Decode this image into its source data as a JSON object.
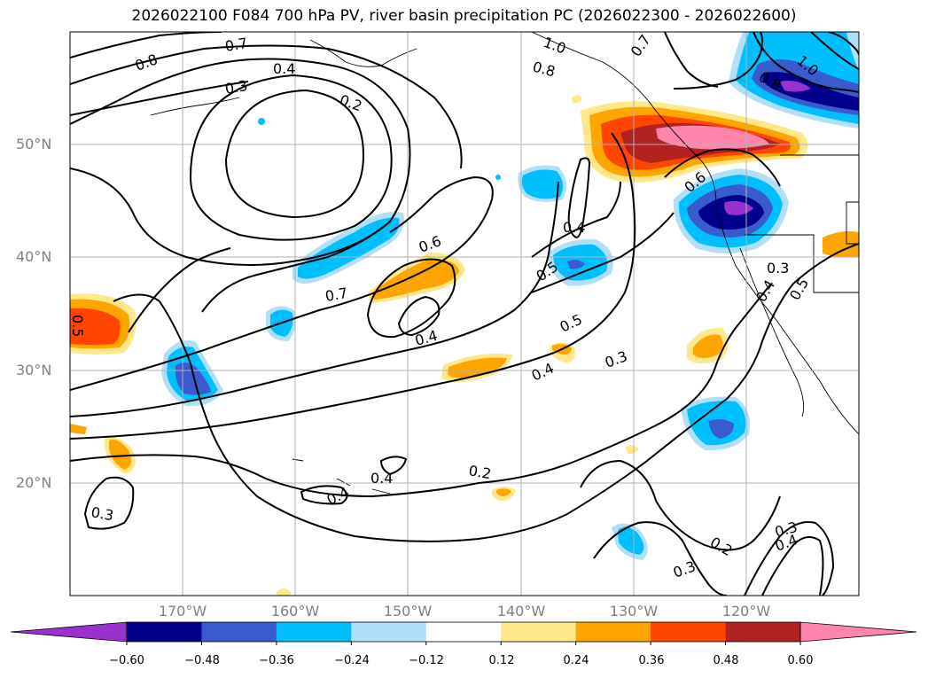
{
  "title": "2026022100 F084 700 hPa PV, river basin precipitation PC (2026022300 - 2026022600)",
  "map": {
    "projection": "equirectangular",
    "lon_range": [
      -180,
      -110
    ],
    "lat_range": [
      10,
      60
    ],
    "lat_ticks": [
      {
        "value": 20,
        "label": "20°N"
      },
      {
        "value": 30,
        "label": "30°N"
      },
      {
        "value": 40,
        "label": "40°N"
      },
      {
        "value": 50,
        "label": "50°N"
      }
    ],
    "lon_ticks": [
      {
        "value": -170,
        "label": "170°W"
      },
      {
        "value": -160,
        "label": "160°W"
      },
      {
        "value": -150,
        "label": "150°W"
      },
      {
        "value": -140,
        "label": "140°W"
      },
      {
        "value": -130,
        "label": "130°W"
      },
      {
        "value": -120,
        "label": "120°W"
      }
    ],
    "contour_variable": "700 hPa PV",
    "shaded_variable": "river basin precipitation PC",
    "contour_labels": [
      "0.8",
      "0.7",
      "0.4",
      "0.3",
      "0.2",
      "1.0",
      "0.8",
      "0.7",
      "1.0",
      "0.8",
      "0.6",
      "0.4",
      "0.6",
      "0.7",
      "0.5",
      "0.5",
      "0.4",
      "0.4",
      "0.3",
      "0.5",
      "0.3",
      "0.4",
      "0.5",
      "0.4",
      "0.4",
      "0.2",
      "0.3",
      "0.2",
      "0.3",
      "0.4",
      "0.3"
    ]
  },
  "colorbar": {
    "ticks": [
      "−0.60",
      "−0.48",
      "−0.36",
      "−0.24",
      "−0.12",
      "0.12",
      "0.24",
      "0.36",
      "0.48",
      "0.60"
    ],
    "colors": [
      "#9932cc",
      "#00008b",
      "#3a5bcd",
      "#00bfff",
      "#b0e0f8",
      "#ffffff",
      "#ffe88a",
      "#ffa500",
      "#ff4500",
      "#b22222",
      "#ff85ad"
    ],
    "extend": "both"
  }
}
